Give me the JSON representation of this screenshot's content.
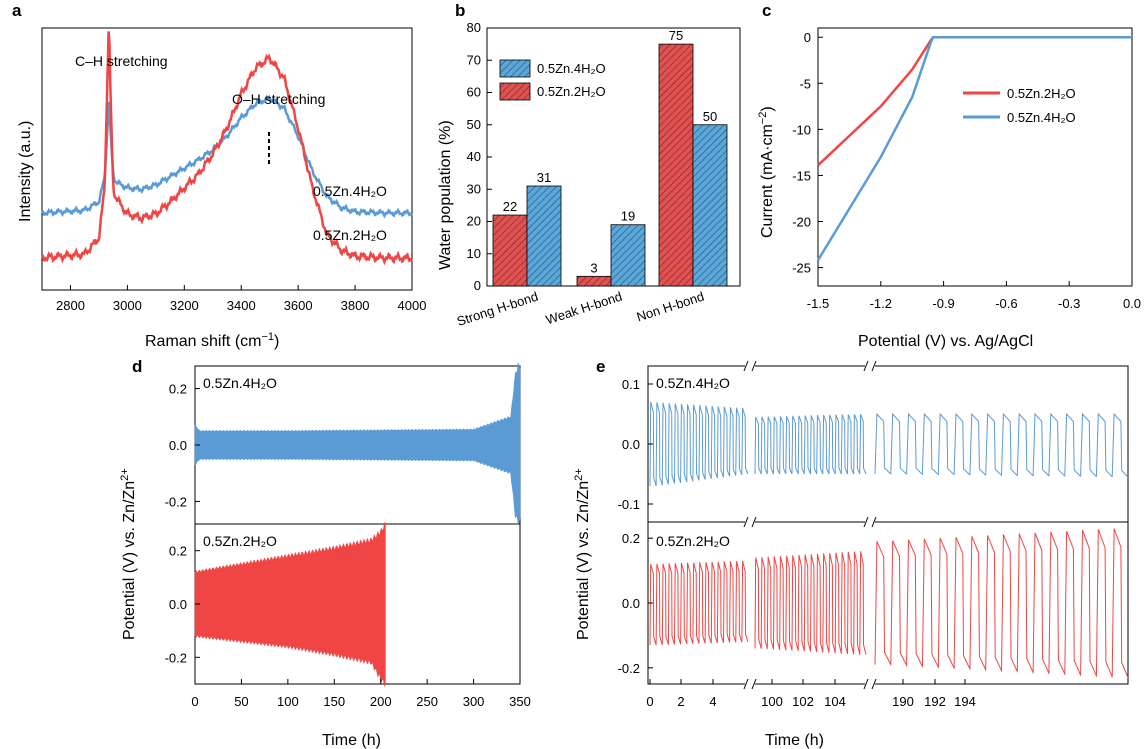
{
  "colors": {
    "red": "#f04545",
    "blue": "#5b9bd5",
    "red_bar": "#e05252",
    "blue_bar": "#5ba8d8"
  },
  "chart_data": [
    {
      "panel": "a",
      "type": "line",
      "xlabel": "Raman shift (cm",
      "xlabel_sup": "−1",
      "xlabel_end": ")",
      "ylabel": "Intensity (a.u.)",
      "xlim": [
        2700,
        4000
      ],
      "xticks": [
        2800,
        3000,
        3200,
        3400,
        3600,
        3800,
        4000
      ],
      "annotations": [
        "C–H stretching",
        "O–H stretching"
      ],
      "series": [
        {
          "name": "0.5Zn.4H₂O",
          "color": "#5b9bd5",
          "x": [
            2700,
            2850,
            2900,
            2920,
            2930,
            2935,
            2940,
            2950,
            2960,
            2980,
            3000,
            3050,
            3100,
            3150,
            3200,
            3250,
            3300,
            3350,
            3400,
            3450,
            3500,
            3550,
            3600,
            3650,
            3700,
            3750,
            3800,
            3900,
            4000
          ],
          "y": [
            0.0,
            0.02,
            0.08,
            0.25,
            0.6,
            0.85,
            0.6,
            0.28,
            0.22,
            0.2,
            0.18,
            0.17,
            0.2,
            0.26,
            0.32,
            0.38,
            0.45,
            0.55,
            0.68,
            0.78,
            0.82,
            0.75,
            0.55,
            0.3,
            0.12,
            0.04,
            0.01,
            0.0,
            0.0
          ]
        },
        {
          "name": "0.5Zn.2H₂O",
          "color": "#f04545",
          "x": [
            2700,
            2850,
            2900,
            2920,
            2930,
            2935,
            2940,
            2950,
            2960,
            2980,
            3000,
            3050,
            3100,
            3150,
            3200,
            3250,
            3300,
            3350,
            3400,
            3450,
            3500,
            3550,
            3600,
            3650,
            3700,
            3750,
            3800,
            3900,
            4000
          ],
          "y": [
            0.0,
            0.02,
            0.1,
            0.35,
            0.9,
            1.2,
            0.85,
            0.35,
            0.3,
            0.26,
            0.22,
            0.2,
            0.22,
            0.28,
            0.35,
            0.42,
            0.52,
            0.65,
            0.82,
            0.95,
            1.0,
            0.9,
            0.65,
            0.35,
            0.12,
            0.04,
            0.01,
            0.0,
            0.0
          ]
        }
      ]
    },
    {
      "panel": "b",
      "type": "bar",
      "ylabel": "Water population (%)",
      "ylim": [
        0,
        80
      ],
      "yticks": [
        0,
        10,
        20,
        30,
        40,
        50,
        60,
        70,
        80
      ],
      "categories": [
        "Strong H-bond",
        "Weak H-bond",
        "Non H-bond"
      ],
      "series": [
        {
          "name": "0.5Zn.2H₂O",
          "color": "#e05252",
          "values": [
            22,
            3,
            75
          ]
        },
        {
          "name": "0.5Zn.4H₂O",
          "color": "#5ba8d8",
          "values": [
            31,
            19,
            50
          ]
        }
      ],
      "legend_order": [
        "0.5Zn.4H₂O",
        "0.5Zn.2H₂O"
      ],
      "legend_position": "top-left"
    },
    {
      "panel": "c",
      "type": "line",
      "xlabel": "Potential (V) vs. Ag/AgCl",
      "ylabel": "Current (mA·cm",
      "ylabel_sup": "−2",
      "ylabel_end": ")",
      "xlim": [
        -1.5,
        0.0
      ],
      "ylim": [
        -27,
        1
      ],
      "xticks": [
        "-1.5",
        "-1.2",
        "-0.9",
        "-0.6",
        "-0.3",
        "0.0"
      ],
      "yticks": [
        0,
        -5,
        -10,
        -15,
        -20,
        -25
      ],
      "series": [
        {
          "name": "0.5Zn.2H₂O",
          "color": "#f04545",
          "x": [
            -1.5,
            -1.2,
            -1.05,
            -0.96,
            -0.95,
            -0.7,
            0.0
          ],
          "y": [
            -13.9,
            -7.5,
            -3.5,
            -0.3,
            0.0,
            0.0,
            0.0
          ]
        },
        {
          "name": "0.5Zn.4H₂O",
          "color": "#5b9bd5",
          "x": [
            -1.5,
            -1.2,
            -1.05,
            -0.96,
            -0.95,
            -0.7,
            0.0
          ],
          "y": [
            -24.2,
            -13.0,
            -6.5,
            -0.5,
            0.0,
            0.0,
            0.0
          ]
        }
      ],
      "legend_position": "center-right"
    },
    {
      "panel": "d",
      "type": "line",
      "xlabel": "Time (h)",
      "ylabel": "Potential (V) vs. Zn/Zn",
      "ylabel_sup": "2+",
      "xlim": [
        0,
        350
      ],
      "xticks": [
        0,
        50,
        100,
        150,
        200,
        250,
        300,
        350
      ],
      "subplots": [
        {
          "name": "0.5Zn.4H₂O",
          "color": "#5b9bd5",
          "ylim": [
            -0.28,
            0.28
          ],
          "yticks": [
            "0.2",
            "0.0",
            "-0.2"
          ],
          "envelope_t": [
            0,
            5,
            100,
            300,
            340,
            345,
            348,
            350
          ],
          "envelope_upper": [
            0.07,
            0.05,
            0.05,
            0.055,
            0.1,
            0.25,
            0.28,
            0.28
          ],
          "envelope_lower": [
            -0.07,
            -0.05,
            -0.05,
            -0.055,
            -0.1,
            -0.25,
            -0.27,
            -0.27
          ]
        },
        {
          "name": "0.5Zn.2H₂O",
          "color": "#f04545",
          "ylim": [
            -0.3,
            0.3
          ],
          "yticks": [
            "0.2",
            "0.0",
            "-0.2"
          ],
          "end_time": 205,
          "envelope_t": [
            0,
            50,
            100,
            150,
            190,
            200,
            205
          ],
          "envelope_upper": [
            0.12,
            0.15,
            0.18,
            0.21,
            0.24,
            0.27,
            0.3
          ],
          "envelope_lower": [
            -0.12,
            -0.14,
            -0.16,
            -0.19,
            -0.22,
            -0.28,
            -0.3
          ]
        }
      ]
    },
    {
      "panel": "e",
      "type": "line",
      "xlabel": "Time (h)",
      "ylabel": "Potential (V) vs. Zn/Zn",
      "ylabel_sup": "2+",
      "segments": [
        {
          "xlim": [
            0,
            5.5
          ],
          "xticks": [
            0,
            2,
            4
          ]
        },
        {
          "xlim": [
            98,
            105.8
          ],
          "xticks": [
            100,
            102,
            104
          ]
        },
        {
          "xlim": [
            188,
            195
          ],
          "xticks": [
            190,
            192,
            194
          ]
        }
      ],
      "subplots": [
        {
          "name": "0.5Zn.4H₂O",
          "color": "#5b9bd5",
          "ylim": [
            -0.13,
            0.13
          ],
          "yticks": [
            "0.1",
            "0.0",
            "-0.1"
          ],
          "amplitude": [
            [
              0.07,
              0.06
            ],
            [
              0.045,
              0.05
            ],
            [
              0.05,
              0.05
            ]
          ],
          "lower": [
            [
              -0.07,
              -0.05
            ],
            [
              -0.05,
              -0.05
            ],
            [
              -0.05,
              -0.055
            ]
          ]
        },
        {
          "name": "0.5Zn.2H₂O",
          "color": "#f04545",
          "ylim": [
            -0.25,
            0.25
          ],
          "yticks": [
            "0.2",
            "0.0",
            "-0.2"
          ],
          "amplitude": [
            [
              0.12,
              0.13
            ],
            [
              0.14,
              0.16
            ],
            [
              0.19,
              0.23
            ]
          ],
          "lower": [
            [
              -0.13,
              -0.12
            ],
            [
              -0.14,
              -0.16
            ],
            [
              -0.19,
              -0.23
            ]
          ]
        }
      ]
    }
  ]
}
